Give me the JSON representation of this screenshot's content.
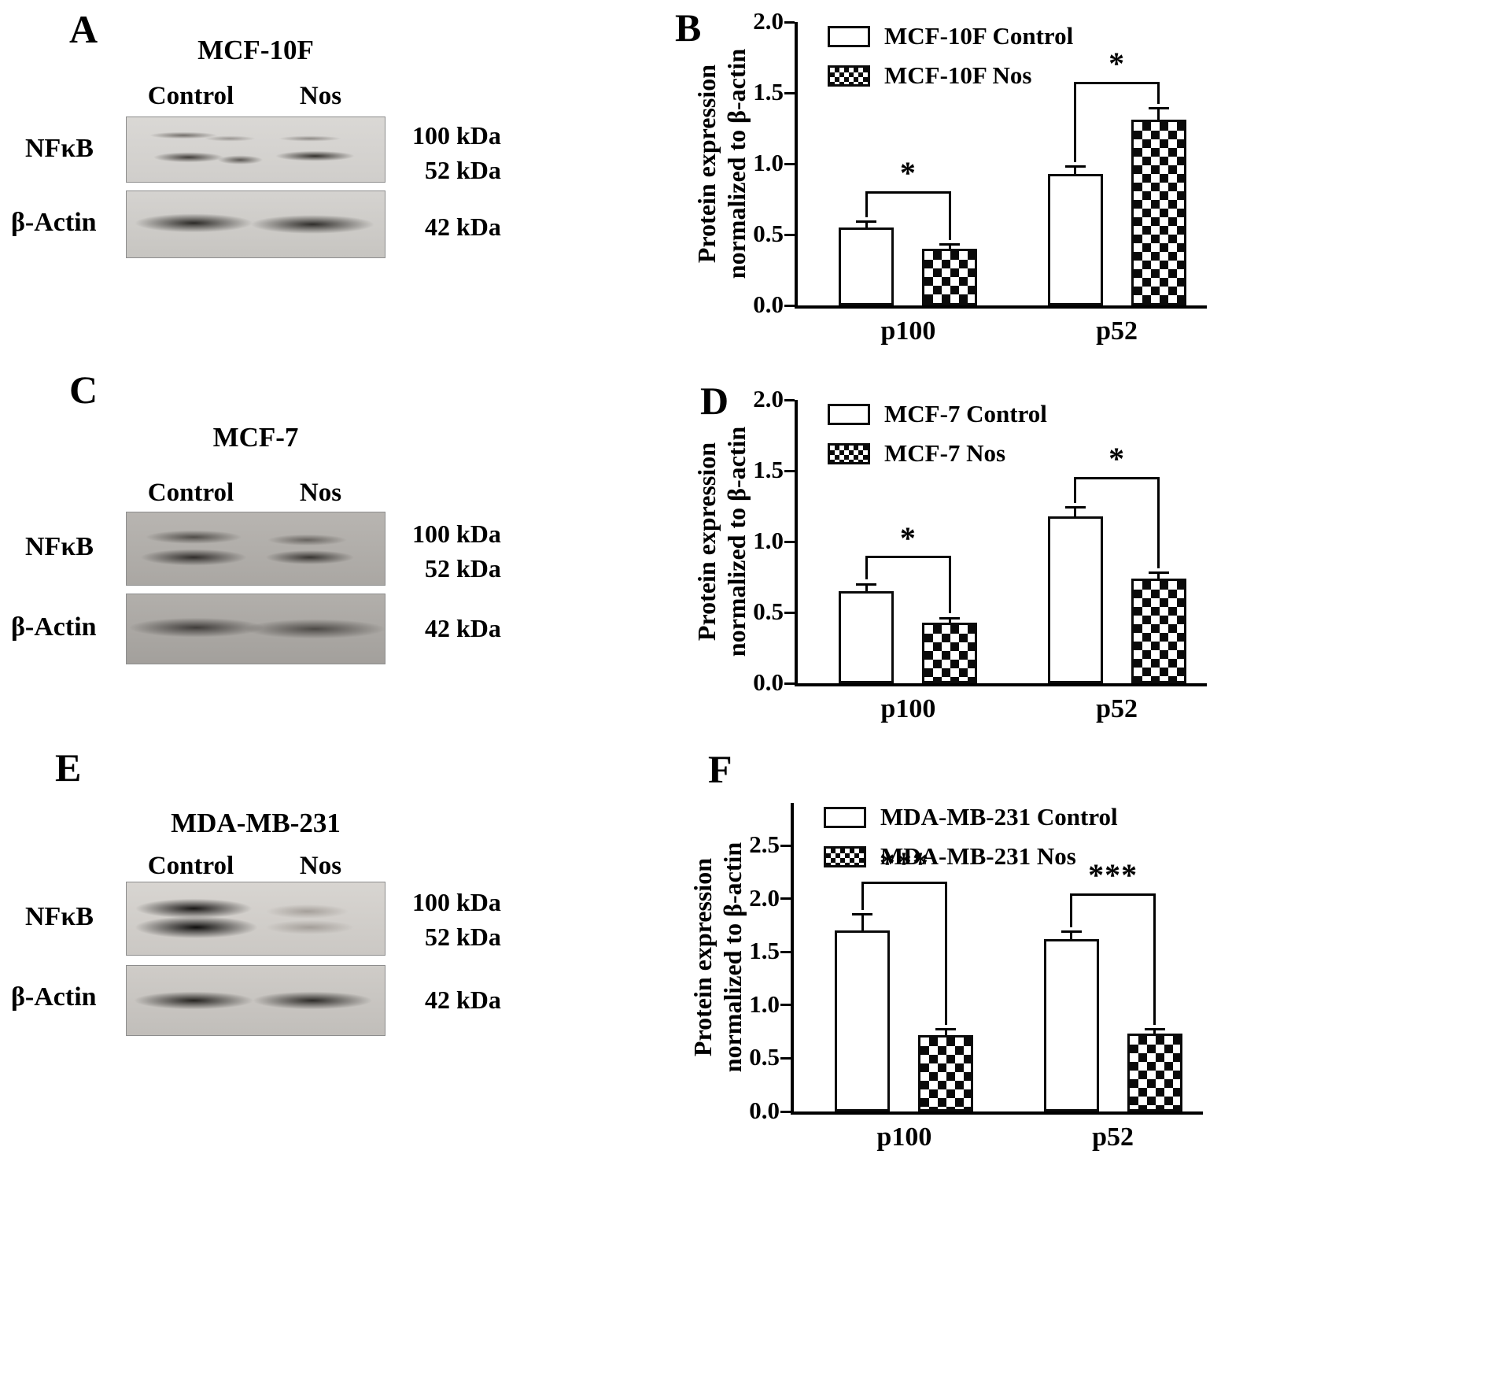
{
  "figure": {
    "panels": [
      {
        "letter": "A",
        "title": "MCF-10F",
        "lane_labels": [
          "Control",
          "Nos"
        ],
        "protein_labels": [
          "NFκB",
          "β-Actin"
        ],
        "marker_labels": [
          "100 kDa",
          "52 kDa",
          "42 kDa"
        ]
      },
      {
        "letter": "C",
        "title": "MCF-7",
        "lane_labels": [
          "Control",
          "Nos"
        ],
        "protein_labels": [
          "NFκB",
          "β-Actin"
        ],
        "marker_labels": [
          "100 kDa",
          "52 kDa",
          "42 kDa"
        ]
      },
      {
        "letter": "E",
        "title": "MDA-MB-231",
        "lane_labels": [
          "Control",
          "Nos"
        ],
        "protein_labels": [
          "NFκB",
          "β-Actin"
        ],
        "marker_labels": [
          "100 kDa",
          "52 kDa",
          "42 kDa"
        ]
      }
    ]
  },
  "chart_data": [
    {
      "panel_letter": "B",
      "type": "bar",
      "categories": [
        "p100",
        "p52"
      ],
      "series": [
        {
          "name": "MCF-10F Control",
          "pattern": "open",
          "values": [
            0.55,
            0.93
          ],
          "errors": [
            0.04,
            0.05
          ]
        },
        {
          "name": "MCF-10F Nos",
          "pattern": "checkered",
          "values": [
            0.4,
            1.31
          ],
          "errors": [
            0.03,
            0.08
          ]
        }
      ],
      "ylabel_lines": [
        "Protein expression",
        "normalized to β-actin"
      ],
      "ylim": [
        0,
        2.0
      ],
      "yticks": [
        0,
        0.5,
        1.0,
        1.5,
        2.0
      ],
      "significance": [
        {
          "category": "p100",
          "label": "*",
          "y": 0.8
        },
        {
          "category": "p52",
          "label": "*",
          "y": 1.57
        }
      ]
    },
    {
      "panel_letter": "D",
      "type": "bar",
      "categories": [
        "p100",
        "p52"
      ],
      "series": [
        {
          "name": "MCF-7 Control",
          "pattern": "open",
          "values": [
            0.65,
            1.18
          ],
          "errors": [
            0.05,
            0.06
          ]
        },
        {
          "name": "MCF-7  Nos",
          "pattern": "checkered",
          "values": [
            0.43,
            0.74
          ],
          "errors": [
            0.03,
            0.04
          ]
        }
      ],
      "ylabel_lines": [
        "Protein expression",
        "normalized to β-actin"
      ],
      "ylim": [
        0,
        2.0
      ],
      "yticks": [
        0,
        0.5,
        1.0,
        1.5,
        2.0
      ],
      "significance": [
        {
          "category": "p100",
          "label": "*",
          "y": 0.89
        },
        {
          "category": "p52",
          "label": "*",
          "y": 1.45
        }
      ]
    },
    {
      "panel_letter": "F",
      "type": "bar",
      "categories": [
        "p100",
        "p52"
      ],
      "series": [
        {
          "name": "MDA-MB-231 Control",
          "pattern": "open",
          "values": [
            1.7,
            1.62
          ],
          "errors": [
            0.15,
            0.07
          ]
        },
        {
          "name": "MDA-MB-231 Nos",
          "pattern": "checkered",
          "values": [
            0.72,
            0.73
          ],
          "errors": [
            0.05,
            0.04
          ]
        }
      ],
      "ylabel_lines": [
        "Protein expression",
        "normalized to β-actin"
      ],
      "ylim": [
        0,
        2.9
      ],
      "yticks": [
        0,
        0.5,
        1.0,
        1.5,
        2.0,
        2.5
      ],
      "significance": [
        {
          "category": "p100",
          "label": "***",
          "y": 2.15
        },
        {
          "category": "p52",
          "label": "***",
          "y": 2.04
        }
      ]
    }
  ]
}
